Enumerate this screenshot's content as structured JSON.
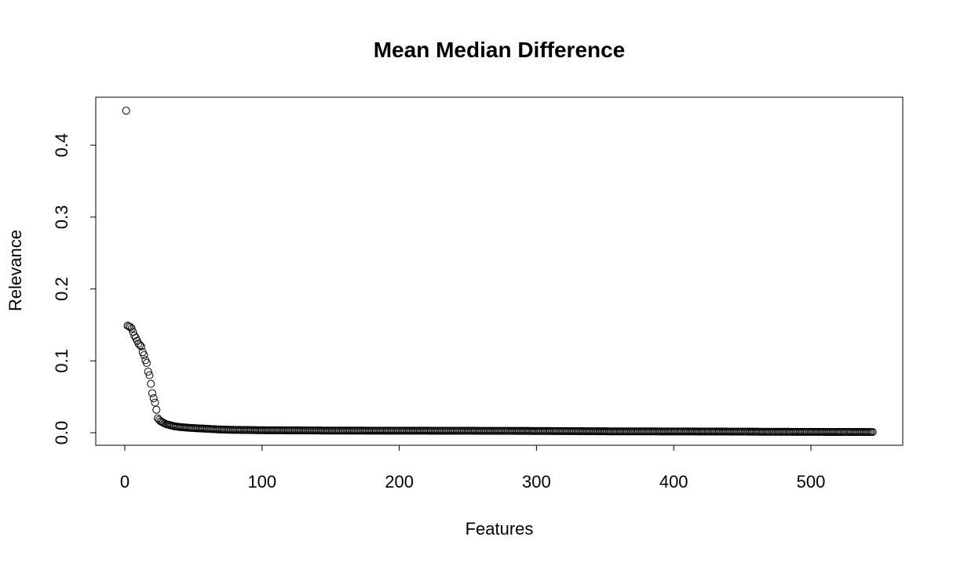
{
  "chart_data": {
    "type": "scatter",
    "title": "Mean Median Difference",
    "xlabel": "Features",
    "ylabel": "Relevance",
    "xlim": [
      0,
      545
    ],
    "ylim": [
      0,
      0.448
    ],
    "x_ticks": [
      0,
      100,
      200,
      300,
      400,
      500
    ],
    "x_tick_labels": [
      "0",
      "100",
      "200",
      "300",
      "400",
      "500"
    ],
    "y_ticks": [
      0.0,
      0.1,
      0.2,
      0.3,
      0.4
    ],
    "y_tick_labels": [
      "0.0",
      "0.1",
      "0.2",
      "0.3",
      "0.4"
    ],
    "grid": false,
    "legend": "none",
    "marker": "open-circle",
    "color": "#000000",
    "series": [
      {
        "x": [
          1,
          2,
          3,
          4,
          5,
          6,
          7,
          8,
          9,
          10,
          11,
          12,
          13,
          14,
          15,
          16,
          17,
          18,
          19,
          20,
          21,
          22,
          23,
          24,
          25,
          26,
          27,
          28,
          29,
          30,
          32,
          34,
          36,
          38,
          40,
          43,
          46,
          50,
          55,
          60,
          65,
          70,
          80,
          100,
          150,
          220,
          300,
          345,
          400,
          450,
          500,
          545
        ],
        "y": [
          0.448,
          0.149,
          0.148,
          0.147,
          0.145,
          0.14,
          0.135,
          0.132,
          0.128,
          0.124,
          0.122,
          0.12,
          0.112,
          0.108,
          0.101,
          0.097,
          0.085,
          0.08,
          0.068,
          0.055,
          0.048,
          0.042,
          0.032,
          0.02,
          0.018,
          0.016,
          0.015,
          0.014,
          0.013,
          0.012,
          0.011,
          0.01,
          0.009,
          0.0085,
          0.008,
          0.0075,
          0.007,
          0.0065,
          0.006,
          0.0055,
          0.005,
          0.0045,
          0.004,
          0.0035,
          0.003,
          0.0028,
          0.0025,
          0.002,
          0.0018,
          0.0015,
          0.0012,
          0.001
        ]
      }
    ]
  }
}
